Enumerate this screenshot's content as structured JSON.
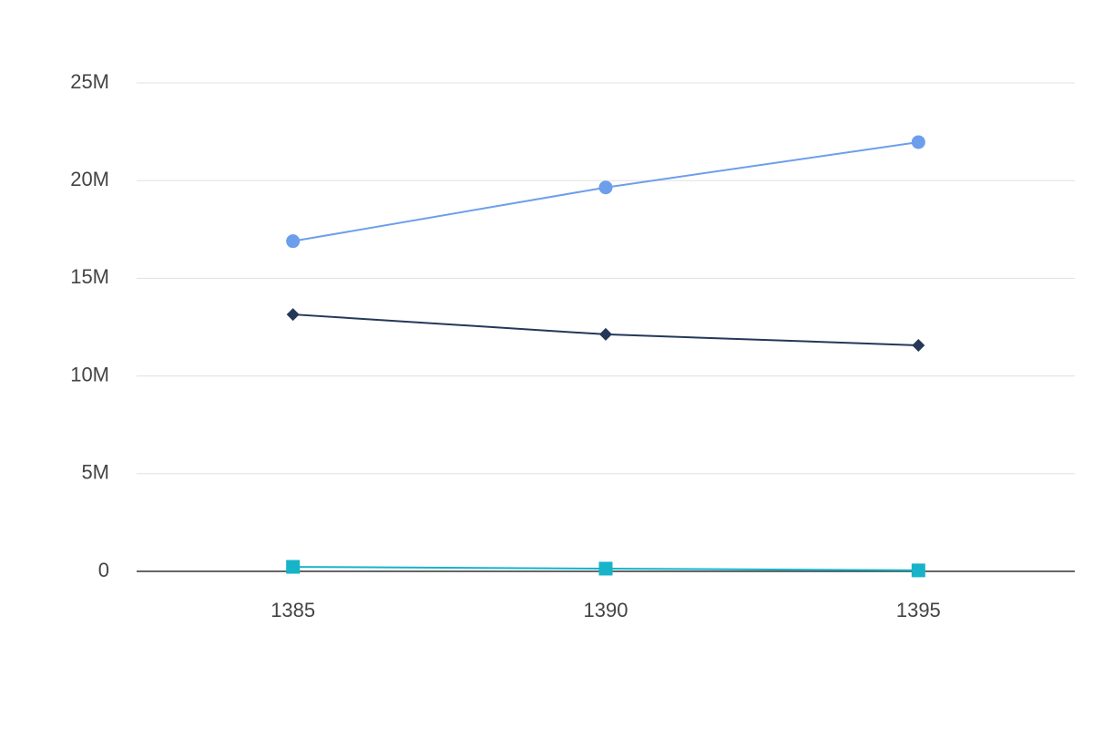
{
  "chart_data": {
    "type": "line",
    "categories": [
      "1385",
      "1390",
      "1395"
    ],
    "series": [
      {
        "color": "#6d9eeb",
        "marker": "circle",
        "values": [
          16900000,
          19650000,
          21970000
        ]
      },
      {
        "color": "#253858",
        "marker": "diamond",
        "values": [
          13150000,
          12130000,
          11570000
        ]
      },
      {
        "color": "#17b3c9",
        "marker": "square",
        "values": [
          230000,
          140000,
          50000
        ]
      }
    ],
    "ylim": [
      0,
      25000000
    ],
    "yticks": [
      0,
      {
        "value": 5000000,
        "label": "5M"
      },
      {
        "value": 10000000,
        "label": "10M"
      },
      {
        "value": 15000000,
        "label": "15M"
      },
      {
        "value": 20000000,
        "label": "20M"
      },
      {
        "value": 25000000,
        "label": "25M"
      }
    ],
    "grid": true
  }
}
